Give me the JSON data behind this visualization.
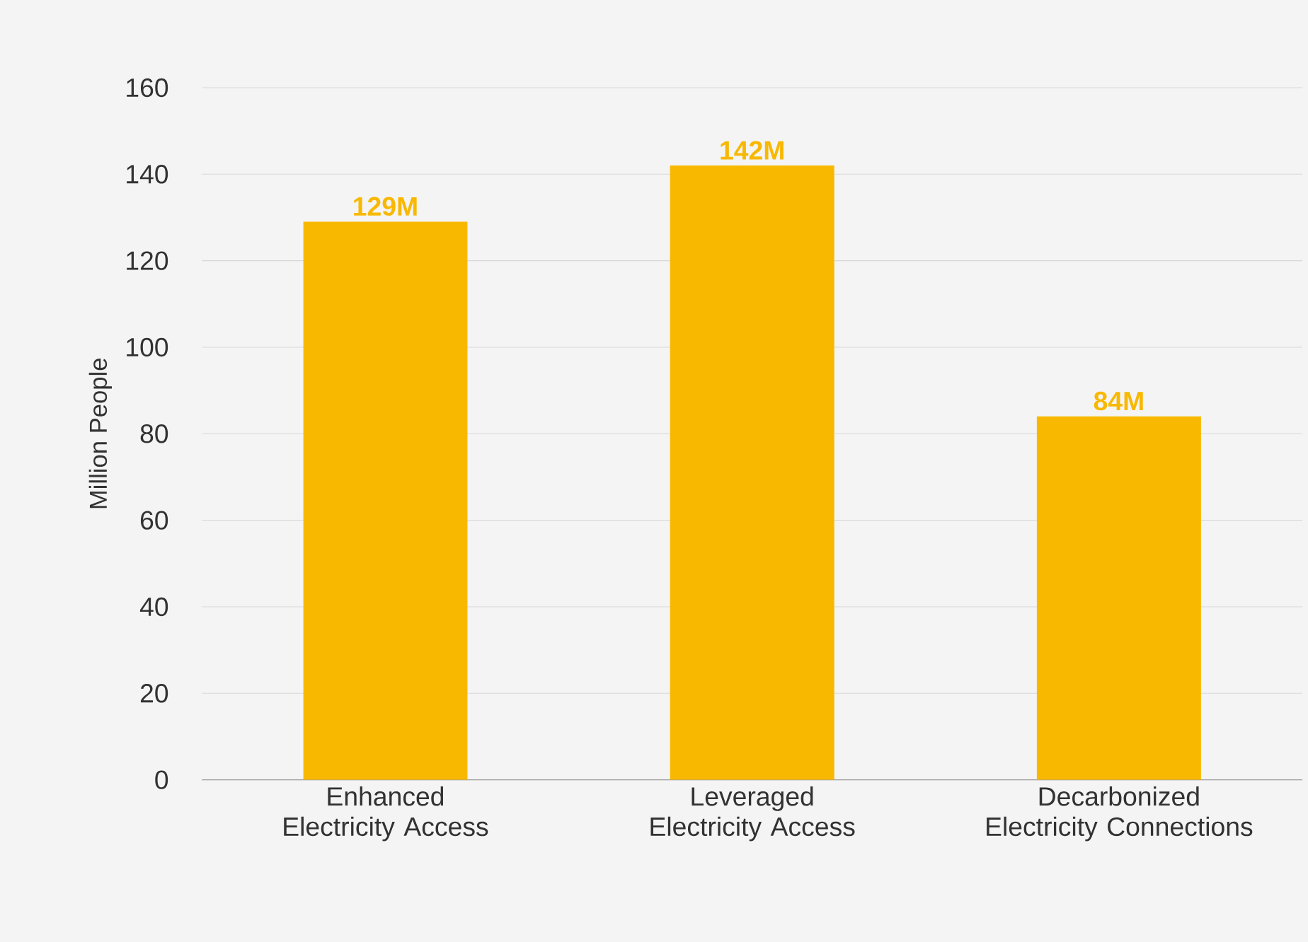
{
  "chart_data": {
    "type": "bar",
    "ylabel": "Million People",
    "categories": [
      "Enhanced Electricity Access",
      "Leveraged Electricity Access",
      "Decarbonized Electricity Connections"
    ],
    "values": [
      129,
      142,
      84
    ],
    "value_labels": [
      "129M",
      "142M",
      "84M"
    ],
    "color": "#f8b800",
    "ylim": [
      0,
      160
    ],
    "yticks": [
      0,
      20,
      40,
      60,
      80,
      100,
      120,
      140,
      160
    ],
    "grid": "y"
  }
}
